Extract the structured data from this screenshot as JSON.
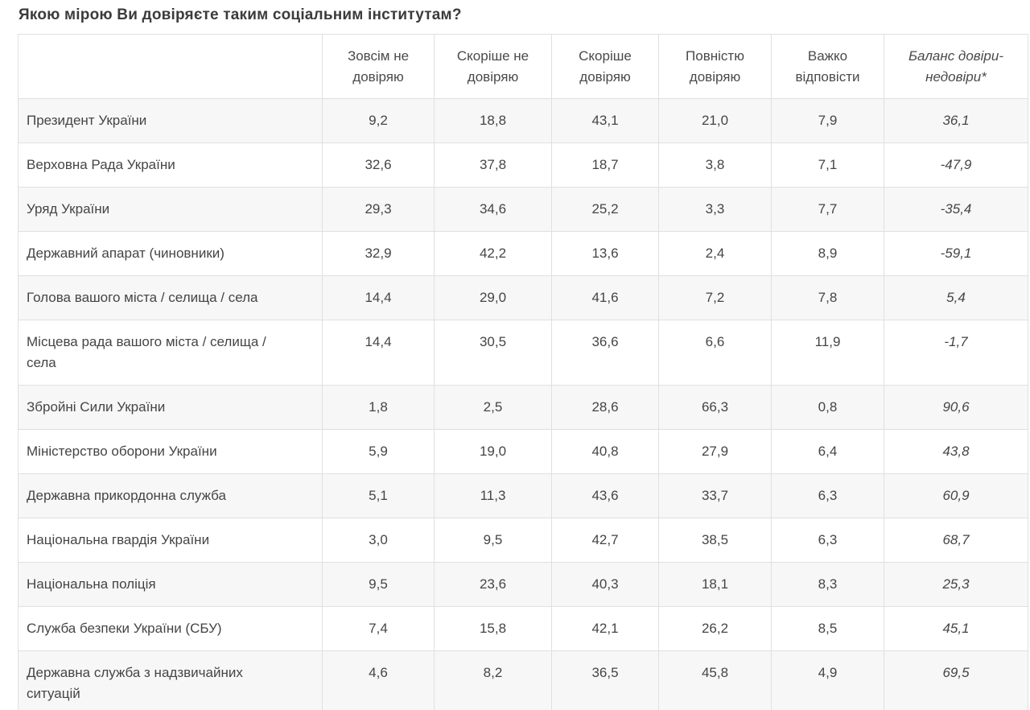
{
  "title": "Якою мірою Ви довіряєте таким соціальним інститутам?",
  "chart_data": {
    "type": "table",
    "title": "Якою мірою Ви довіряєте таким соціальним інститутам?",
    "columns": [
      "",
      "Зовсім не довіряю",
      "Скоріше не довіряю",
      "Скоріше довіряю",
      "Повністю довіряю",
      "Важко відповісти",
      "Баланс довіри-недовіри*"
    ],
    "value_format": "percent, comma decimal separator",
    "rows": [
      {
        "label": "Президент України",
        "values": [
          "9,2",
          "18,8",
          "43,1",
          "21,0",
          "7,9",
          "36,1"
        ]
      },
      {
        "label": "Верховна Рада України",
        "values": [
          "32,6",
          "37,8",
          "18,7",
          "3,8",
          "7,1",
          "-47,9"
        ]
      },
      {
        "label": "Уряд України",
        "values": [
          "29,3",
          "34,6",
          "25,2",
          "3,3",
          "7,7",
          "-35,4"
        ]
      },
      {
        "label": "Державний апарат (чиновники)",
        "values": [
          "32,9",
          "42,2",
          "13,6",
          "2,4",
          "8,9",
          "-59,1"
        ]
      },
      {
        "label": "Голова вашого міста / селища / села",
        "values": [
          "14,4",
          "29,0",
          "41,6",
          "7,2",
          "7,8",
          "5,4"
        ]
      },
      {
        "label": "Місцева рада вашого міста / селища / села",
        "values": [
          "14,4",
          "30,5",
          "36,6",
          "6,6",
          "11,9",
          "-1,7"
        ]
      },
      {
        "label": "Збройні Сили України",
        "values": [
          "1,8",
          "2,5",
          "28,6",
          "66,3",
          "0,8",
          "90,6"
        ]
      },
      {
        "label": "Міністерство оборони України",
        "values": [
          "5,9",
          "19,0",
          "40,8",
          "27,9",
          "6,4",
          "43,8"
        ]
      },
      {
        "label": "Державна прикордонна служба",
        "values": [
          "5,1",
          "11,3",
          "43,6",
          "33,7",
          "6,3",
          "60,9"
        ]
      },
      {
        "label": "Національна гвардія України",
        "values": [
          "3,0",
          "9,5",
          "42,7",
          "38,5",
          "6,3",
          "68,7"
        ]
      },
      {
        "label": "Національна поліція",
        "values": [
          "9,5",
          "23,6",
          "40,3",
          "18,1",
          "8,3",
          "25,3"
        ]
      },
      {
        "label": "Служба безпеки України (СБУ)",
        "values": [
          "7,4",
          "15,8",
          "42,1",
          "26,2",
          "8,5",
          "45,1"
        ]
      },
      {
        "label": "Державна служба з надзвичайних ситуацій",
        "values": [
          "4,6",
          "8,2",
          "36,5",
          "45,8",
          "4,9",
          "69,5"
        ]
      }
    ],
    "layout": {
      "striped_rows": true,
      "stripe_color": "#f7f7f7",
      "border_color": "#e0e0e0",
      "text_color": "#454545",
      "balance_column_italic": true
    }
  }
}
